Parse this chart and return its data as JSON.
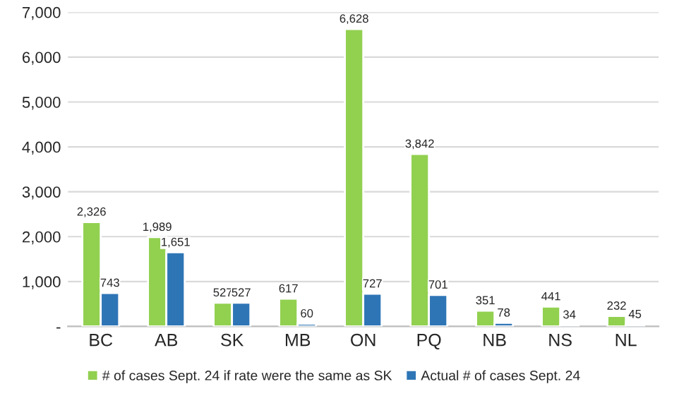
{
  "chart_data": {
    "type": "bar",
    "categories": [
      "BC",
      "AB",
      "SK",
      "MB",
      "ON",
      "PQ",
      "NB",
      "NS",
      "NL"
    ],
    "series": [
      {
        "name": "# of cases Sept. 24 if rate were the same as SK",
        "color": "#92d050",
        "values": [
          2326,
          1989,
          527,
          617,
          6628,
          3842,
          351,
          441,
          232
        ],
        "value_labels": [
          "2,326",
          "1,989",
          "527",
          "617",
          "6,628",
          "3,842",
          "351",
          "441",
          "232"
        ]
      },
      {
        "name": "Actual # of cases Sept. 24",
        "color": "#2e75b6",
        "values": [
          743,
          1651,
          527,
          60,
          727,
          701,
          78,
          34,
          45
        ],
        "value_labels": [
          "743",
          "1,651",
          "527",
          "60",
          "727",
          "701",
          "78",
          "34",
          "45"
        ]
      }
    ],
    "ylim": [
      0,
      7000
    ],
    "yticks": [
      {
        "value": 0,
        "label": "-"
      },
      {
        "value": 1000,
        "label": "1,000"
      },
      {
        "value": 2000,
        "label": "2,000"
      },
      {
        "value": 3000,
        "label": "3,000"
      },
      {
        "value": 4000,
        "label": "4,000"
      },
      {
        "value": 5000,
        "label": "5,000"
      },
      {
        "value": 6000,
        "label": "6,000"
      },
      {
        "value": 7000,
        "label": "7,000"
      }
    ],
    "grid": "y",
    "legend": "bottom"
  }
}
